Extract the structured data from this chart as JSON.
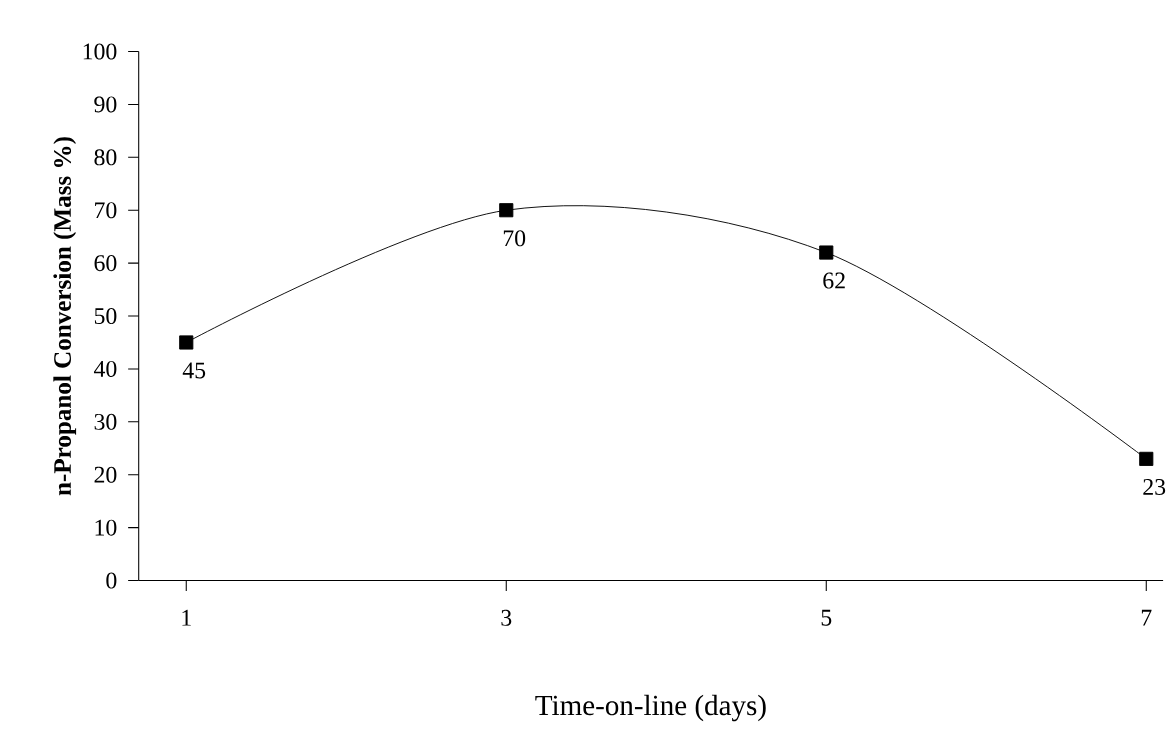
{
  "chart_data": {
    "type": "line",
    "xlabel": "Time-on-line (days)",
    "ylabel": "n-Propanol Conversion (Mass %)",
    "categories": [
      "1",
      "3",
      "5",
      "7"
    ],
    "values": [
      45,
      70,
      62,
      23
    ],
    "color": "#000000",
    "marker": "square",
    "line_style": "solid",
    "ylim": [
      0,
      100
    ],
    "yticks": [
      0,
      10,
      20,
      30,
      40,
      50,
      60,
      70,
      80,
      90,
      100
    ],
    "data_labels": true
  }
}
